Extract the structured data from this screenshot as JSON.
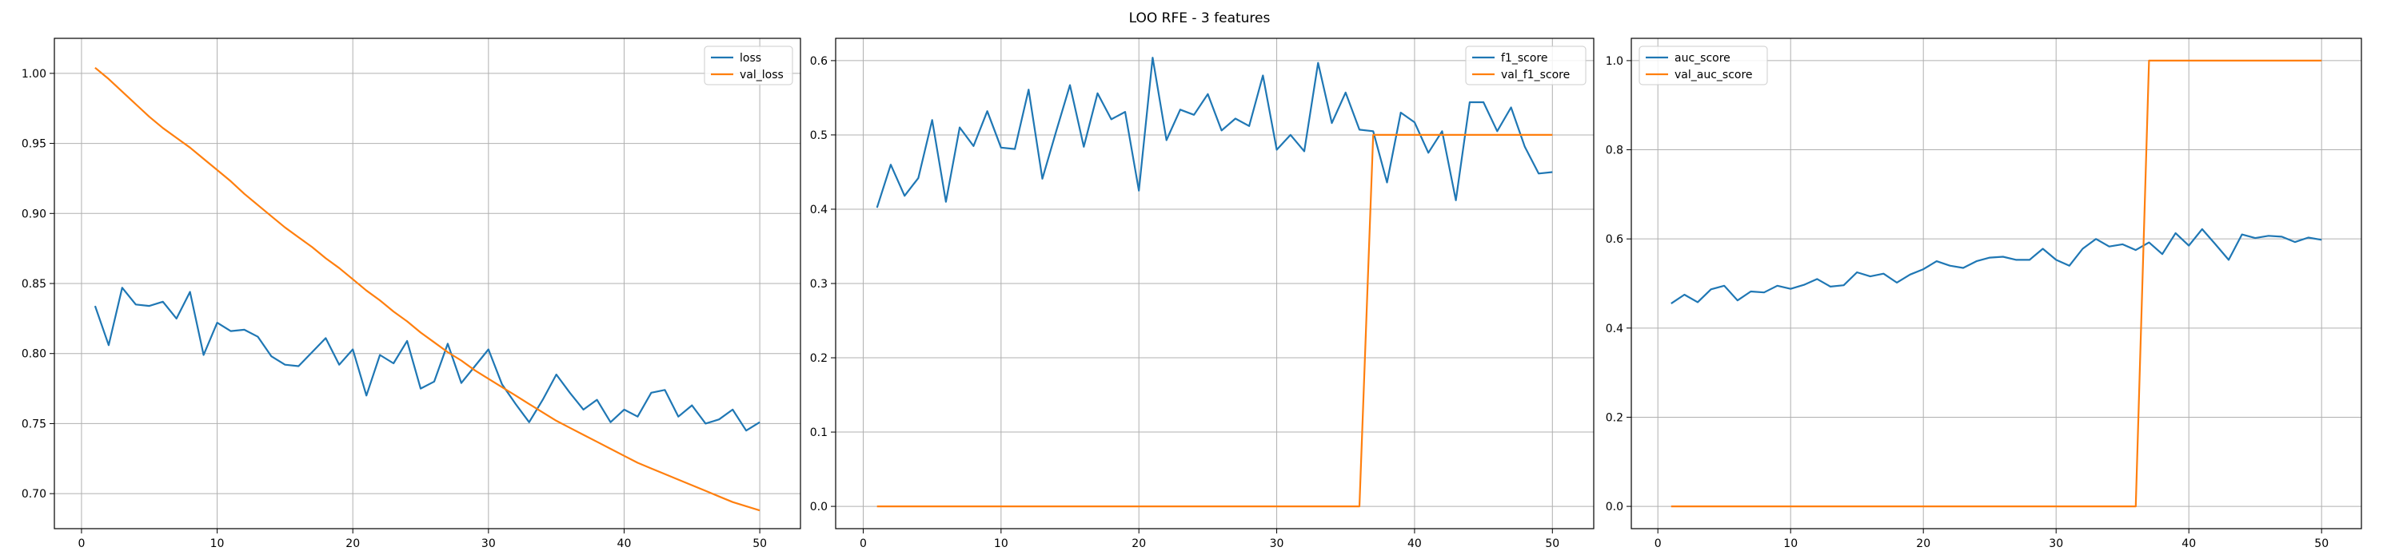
{
  "figure_title": "LOO RFE - 3 features",
  "colors": {
    "series1": "#1f77b4",
    "series2": "#ff7f0e",
    "grid": "#b0b0b0"
  },
  "chart_data": [
    {
      "type": "line",
      "xlim": [
        -2,
        53
      ],
      "ylim": [
        0.675,
        1.025
      ],
      "xticks": [
        0,
        10,
        20,
        30,
        40,
        50
      ],
      "yticks": [
        0.7,
        0.75,
        0.8,
        0.85,
        0.9,
        0.95,
        1.0
      ],
      "ytick_decimals": 2,
      "grid": true,
      "legend_position": "upper right",
      "x": [
        1,
        2,
        3,
        4,
        5,
        6,
        7,
        8,
        9,
        10,
        11,
        12,
        13,
        14,
        15,
        16,
        17,
        18,
        19,
        20,
        21,
        22,
        23,
        24,
        25,
        26,
        27,
        28,
        29,
        30,
        31,
        32,
        33,
        34,
        35,
        36,
        37,
        38,
        39,
        40,
        41,
        42,
        43,
        44,
        45,
        46,
        47,
        48,
        49,
        50
      ],
      "series": [
        {
          "name": "loss",
          "color": "#1f77b4",
          "values": [
            0.834,
            0.806,
            0.847,
            0.835,
            0.834,
            0.837,
            0.825,
            0.844,
            0.799,
            0.822,
            0.816,
            0.817,
            0.812,
            0.798,
            0.792,
            0.791,
            0.801,
            0.811,
            0.792,
            0.803,
            0.77,
            0.799,
            0.793,
            0.809,
            0.775,
            0.78,
            0.807,
            0.779,
            0.791,
            0.803,
            0.778,
            0.764,
            0.751,
            0.767,
            0.785,
            0.772,
            0.76,
            0.767,
            0.751,
            0.76,
            0.755,
            0.772,
            0.774,
            0.755,
            0.763,
            0.75,
            0.753,
            0.76,
            0.745,
            0.751
          ]
        },
        {
          "name": "val_loss",
          "color": "#ff7f0e",
          "values": [
            1.004,
            0.996,
            0.987,
            0.978,
            0.969,
            0.961,
            0.954,
            0.947,
            0.939,
            0.931,
            0.923,
            0.914,
            0.906,
            0.898,
            0.89,
            0.883,
            0.876,
            0.868,
            0.861,
            0.853,
            0.845,
            0.838,
            0.83,
            0.823,
            0.815,
            0.808,
            0.801,
            0.795,
            0.788,
            0.782,
            0.776,
            0.77,
            0.764,
            0.758,
            0.752,
            0.747,
            0.742,
            0.737,
            0.732,
            0.727,
            0.722,
            0.718,
            0.714,
            0.71,
            0.706,
            0.702,
            0.698,
            0.694,
            0.691,
            0.688
          ]
        }
      ]
    },
    {
      "type": "line",
      "xlim": [
        -2,
        53
      ],
      "ylim": [
        -0.03,
        0.63
      ],
      "xticks": [
        0,
        10,
        20,
        30,
        40,
        50
      ],
      "yticks": [
        0.0,
        0.1,
        0.2,
        0.3,
        0.4,
        0.5,
        0.6
      ],
      "ytick_decimals": 1,
      "grid": true,
      "legend_position": "upper right",
      "x": [
        1,
        2,
        3,
        4,
        5,
        6,
        7,
        8,
        9,
        10,
        11,
        12,
        13,
        14,
        15,
        16,
        17,
        18,
        19,
        20,
        21,
        22,
        23,
        24,
        25,
        26,
        27,
        28,
        29,
        30,
        31,
        32,
        33,
        34,
        35,
        36,
        37,
        38,
        39,
        40,
        41,
        42,
        43,
        44,
        45,
        46,
        47,
        48,
        49,
        50
      ],
      "series": [
        {
          "name": "f1_score",
          "color": "#1f77b4",
          "values": [
            0.402,
            0.46,
            0.418,
            0.442,
            0.52,
            0.41,
            0.51,
            0.485,
            0.532,
            0.483,
            0.481,
            0.561,
            0.441,
            0.505,
            0.567,
            0.484,
            0.556,
            0.521,
            0.531,
            0.425,
            0.604,
            0.493,
            0.534,
            0.527,
            0.555,
            0.506,
            0.522,
            0.512,
            0.58,
            0.48,
            0.5,
            0.478,
            0.597,
            0.516,
            0.557,
            0.507,
            0.505,
            0.436,
            0.53,
            0.517,
            0.476,
            0.505,
            0.412,
            0.544,
            0.544,
            0.505,
            0.537,
            0.484,
            0.448,
            0.45
          ]
        },
        {
          "name": "val_f1_score",
          "color": "#ff7f0e",
          "values": [
            0,
            0,
            0,
            0,
            0,
            0,
            0,
            0,
            0,
            0,
            0,
            0,
            0,
            0,
            0,
            0,
            0,
            0,
            0,
            0,
            0,
            0,
            0,
            0,
            0,
            0,
            0,
            0,
            0,
            0,
            0,
            0,
            0,
            0,
            0,
            0,
            0.5,
            0.5,
            0.5,
            0.5,
            0.5,
            0.5,
            0.5,
            0.5,
            0.5,
            0.5,
            0.5,
            0.5,
            0.5,
            0.5
          ]
        }
      ]
    },
    {
      "type": "line",
      "xlim": [
        -2,
        53
      ],
      "ylim": [
        -0.05,
        1.05
      ],
      "xticks": [
        0,
        10,
        20,
        30,
        40,
        50
      ],
      "yticks": [
        0.0,
        0.2,
        0.4,
        0.6,
        0.8,
        1.0
      ],
      "ytick_decimals": 1,
      "grid": true,
      "legend_position": "upper left",
      "x": [
        1,
        2,
        3,
        4,
        5,
        6,
        7,
        8,
        9,
        10,
        11,
        12,
        13,
        14,
        15,
        16,
        17,
        18,
        19,
        20,
        21,
        22,
        23,
        24,
        25,
        26,
        27,
        28,
        29,
        30,
        31,
        32,
        33,
        34,
        35,
        36,
        37,
        38,
        39,
        40,
        41,
        42,
        43,
        44,
        45,
        46,
        47,
        48,
        49,
        50
      ],
      "series": [
        {
          "name": "auc_score",
          "color": "#1f77b4",
          "values": [
            0.455,
            0.475,
            0.458,
            0.487,
            0.495,
            0.462,
            0.482,
            0.48,
            0.495,
            0.488,
            0.497,
            0.51,
            0.493,
            0.496,
            0.525,
            0.516,
            0.522,
            0.502,
            0.52,
            0.532,
            0.55,
            0.54,
            0.535,
            0.55,
            0.558,
            0.56,
            0.553,
            0.553,
            0.578,
            0.553,
            0.54,
            0.578,
            0.6,
            0.583,
            0.588,
            0.575,
            0.592,
            0.566,
            0.613,
            0.585,
            0.622,
            0.588,
            0.553,
            0.61,
            0.602,
            0.607,
            0.605,
            0.593,
            0.603,
            0.598
          ]
        },
        {
          "name": "val_auc_score",
          "color": "#ff7f0e",
          "values": [
            0,
            0,
            0,
            0,
            0,
            0,
            0,
            0,
            0,
            0,
            0,
            0,
            0,
            0,
            0,
            0,
            0,
            0,
            0,
            0,
            0,
            0,
            0,
            0,
            0,
            0,
            0,
            0,
            0,
            0,
            0,
            0,
            0,
            0,
            0,
            0,
            1,
            1,
            1,
            1,
            1,
            1,
            1,
            1,
            1,
            1,
            1,
            1,
            1,
            1
          ]
        }
      ]
    }
  ]
}
